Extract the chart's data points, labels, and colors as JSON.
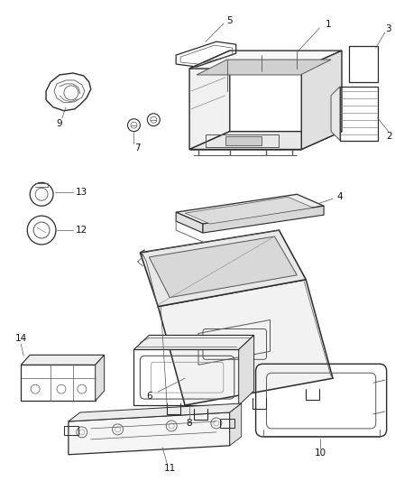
{
  "background_color": "#ffffff",
  "figsize": [
    4.38,
    5.33
  ],
  "dpi": 100,
  "lc": "#2a2a2a",
  "lc2": "#555555",
  "lc3": "#888888"
}
